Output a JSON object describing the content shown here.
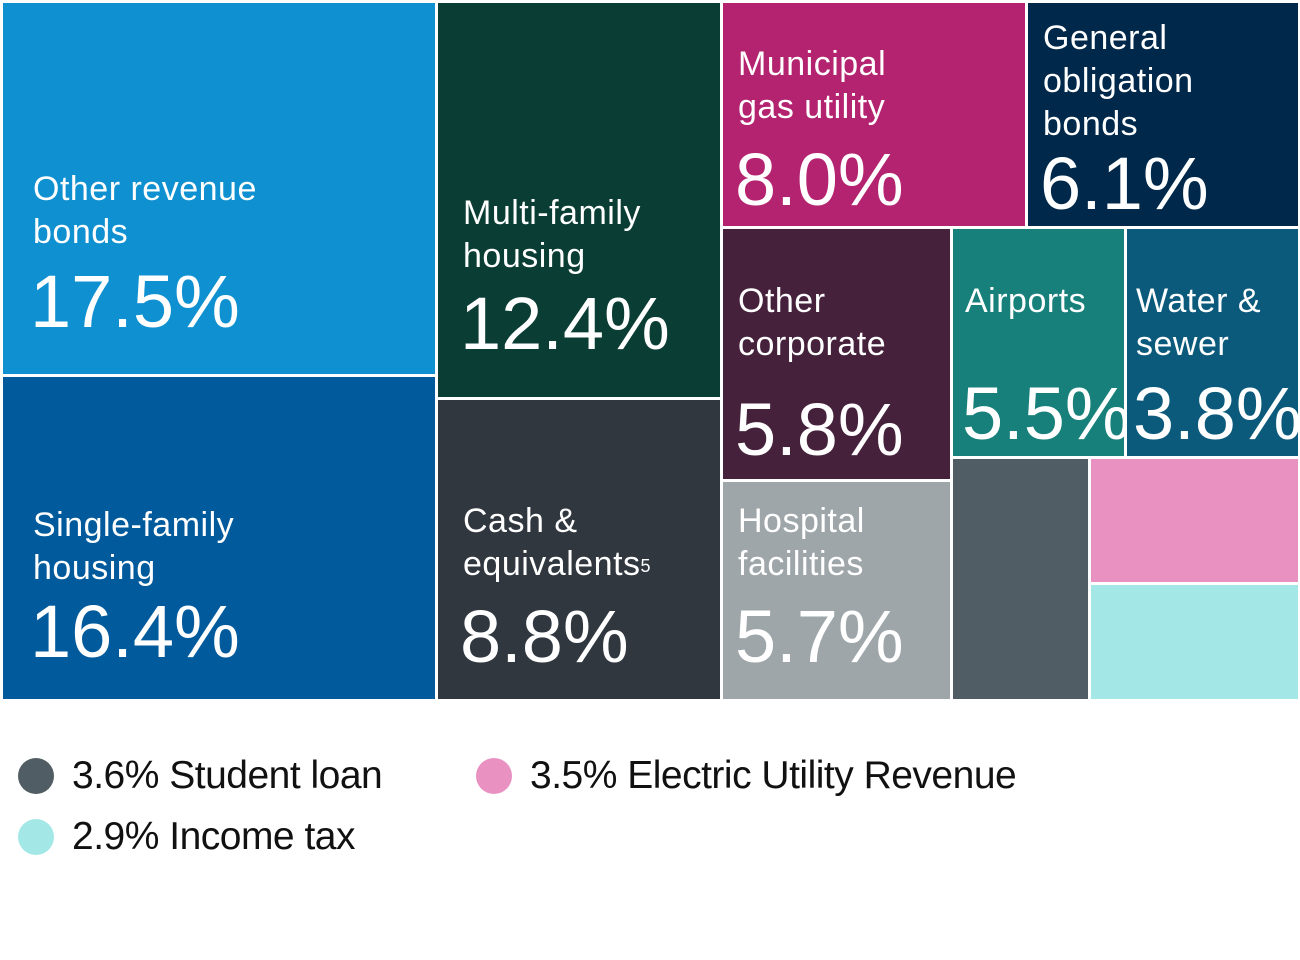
{
  "chart_data": {
    "type": "treemap",
    "unit": "%",
    "items": [
      {
        "label": "Other revenue bonds",
        "value": 17.5,
        "value_text": "17.5%",
        "color": "#0f90d0"
      },
      {
        "label": "Single-family housing",
        "value": 16.4,
        "value_text": "16.4%",
        "color": "#005a9c"
      },
      {
        "label": "Multi-family housing",
        "value": 12.4,
        "value_text": "12.4%",
        "color": "#0a3d33"
      },
      {
        "label": "Cash & equivalents",
        "footnote": "5",
        "value": 8.8,
        "value_text": "8.8%",
        "color": "#30373f"
      },
      {
        "label": "Municipal gas utility",
        "value": 8.0,
        "value_text": "8.0%",
        "color": "#b4236f"
      },
      {
        "label": "General obligation bonds",
        "value": 6.1,
        "value_text": "6.1%",
        "color": "#00284a"
      },
      {
        "label": "Other corporate",
        "value": 5.8,
        "value_text": "5.8%",
        "color": "#45213c"
      },
      {
        "label": "Hospital facilities",
        "value": 5.7,
        "value_text": "5.7%",
        "color": "#9ea6aa"
      },
      {
        "label": "Airports",
        "value": 5.5,
        "value_text": "5.5%",
        "color": "#17807a"
      },
      {
        "label": "Water & sewer",
        "value": 3.8,
        "value_text": "3.8%",
        "color": "#0b5a7c"
      },
      {
        "label": "Student loan",
        "value": 3.6,
        "value_text": "3.6%",
        "color": "#505d64"
      },
      {
        "label": "Electric Utility Revenue",
        "value": 3.5,
        "value_text": "3.5%",
        "color": "#e991c1"
      },
      {
        "label": "Income tax",
        "value": 2.9,
        "value_text": "2.9%",
        "color": "#a3e8e7"
      }
    ]
  },
  "legend": [
    {
      "text": "3.6% Student loan",
      "color": "#505d64"
    },
    {
      "text": "3.5% Electric Utility Revenue",
      "color": "#e991c1"
    },
    {
      "text": "2.9% Income tax",
      "color": "#a3e8e7"
    }
  ]
}
